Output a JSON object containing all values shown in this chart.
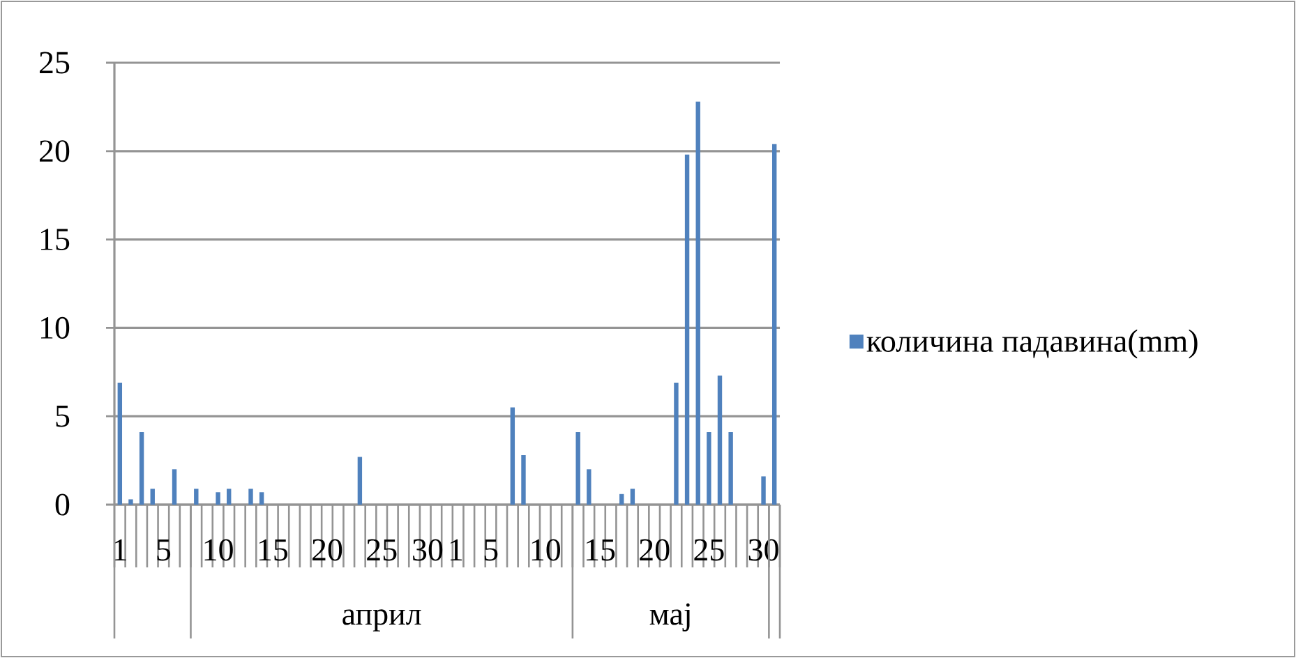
{
  "chart_data": {
    "type": "bar",
    "categories": [
      "1",
      null,
      null,
      null,
      "5",
      null,
      null,
      null,
      null,
      "10",
      null,
      null,
      null,
      null,
      "15",
      null,
      null,
      null,
      null,
      "20",
      null,
      null,
      null,
      null,
      "25",
      null,
      null,
      null,
      null,
      "30",
      "1",
      null,
      null,
      null,
      "5",
      null,
      null,
      null,
      null,
      "10",
      null,
      null,
      null,
      null,
      "15",
      null,
      null,
      null,
      null,
      "20",
      null,
      null,
      null,
      null,
      "25",
      null,
      null,
      null,
      null,
      "30",
      null
    ],
    "series": [
      {
        "name": "количина падавина(mm)",
        "color": "#4f81bd",
        "values": [
          6.9,
          0.3,
          4.1,
          0.9,
          0,
          2.0,
          0,
          0.9,
          0,
          0.7,
          0.9,
          0,
          0.9,
          0.7,
          0,
          0,
          0,
          0,
          0,
          0,
          0,
          0,
          2.7,
          0,
          0,
          0,
          0,
          0,
          0,
          0,
          0,
          0,
          0,
          0,
          0,
          0,
          5.5,
          2.8,
          0,
          0,
          0,
          0,
          4.1,
          2.0,
          0,
          0,
          0.6,
          0.9,
          0,
          0,
          0,
          6.9,
          19.8,
          22.8,
          4.1,
          7.3,
          4.1,
          0,
          0,
          1.6,
          20.4
        ]
      }
    ],
    "ylim": [
      0,
      25
    ],
    "yticks": [
      0,
      5,
      10,
      15,
      20,
      25
    ],
    "grid": "y",
    "legend": "right",
    "annotations": [
      "април",
      "мај"
    ]
  }
}
